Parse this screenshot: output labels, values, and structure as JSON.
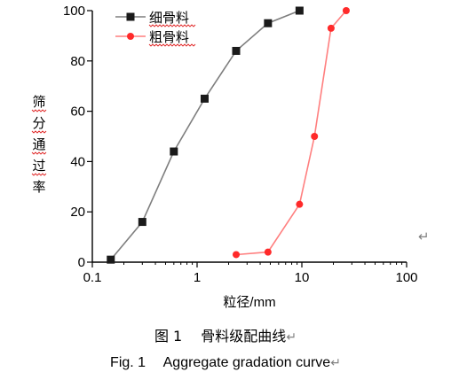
{
  "chart_data": {
    "type": "line",
    "x_scale": "log",
    "xlim": [
      0.1,
      100
    ],
    "ylim": [
      0,
      100
    ],
    "xlabel": "粒径/mm",
    "ylabel": "筛分通过率",
    "x_ticks": [
      {
        "value": 0.1,
        "label": "0.1"
      },
      {
        "value": 1,
        "label": "1"
      },
      {
        "value": 10,
        "label": "10"
      },
      {
        "value": 100,
        "label": "100"
      }
    ],
    "y_ticks": [
      {
        "value": 0,
        "label": "0"
      },
      {
        "value": 20,
        "label": "20"
      },
      {
        "value": 40,
        "label": "40"
      },
      {
        "value": 60,
        "label": "60"
      },
      {
        "value": 80,
        "label": "80"
      },
      {
        "value": 100,
        "label": "100"
      }
    ],
    "legend_position": "top-left",
    "grid": false,
    "series": [
      {
        "name": "细骨料",
        "marker": "square",
        "color": "#1a1a1a",
        "line_color": "#7f7f7f",
        "x": [
          0.15,
          0.3,
          0.6,
          1.18,
          2.36,
          4.75,
          9.5
        ],
        "y": [
          1,
          16,
          44,
          65,
          84,
          95,
          100
        ]
      },
      {
        "name": "粗骨料",
        "marker": "circle",
        "color": "#ff2a2a",
        "line_color": "#ff7f7f",
        "x": [
          2.36,
          4.75,
          9.5,
          13.2,
          19,
          26.5
        ],
        "y": [
          3,
          4,
          23,
          50,
          93,
          100
        ]
      }
    ]
  },
  "caption": {
    "zh": "图 1　 骨料级配曲线",
    "en": "Fig. 1　 Aggregate gradation curve",
    "return_mark": "↵"
  }
}
